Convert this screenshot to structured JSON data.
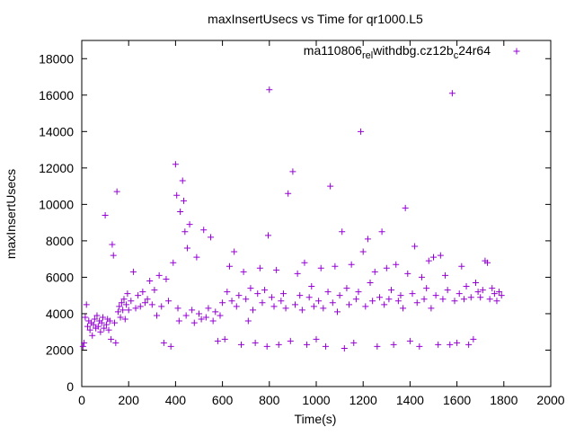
{
  "chart_data": {
    "type": "scatter",
    "title": "maxInsertUsecs vs Time for qr1000.L5",
    "xlabel": "Time(s)",
    "ylabel": "maxInsertUsecs",
    "xlim": [
      0,
      2000
    ],
    "ylim": [
      0,
      19000
    ],
    "x_ticks": [
      0,
      200,
      400,
      600,
      800,
      1000,
      1200,
      1400,
      1600,
      1800,
      2000
    ],
    "y_ticks": [
      0,
      2000,
      4000,
      6000,
      8000,
      10000,
      12000,
      14000,
      16000,
      18000
    ],
    "grid": false,
    "legend_position": "top-right",
    "marker": "+",
    "series": [
      {
        "name": "ma110806_rel_withdbg.cz12b_c24r64",
        "legend_parts": [
          "ma110806",
          "rel",
          "withdbg.cz12b",
          "c",
          "24r64"
        ],
        "color": "#9400d3",
        "points": [
          [
            5,
            2200
          ],
          [
            10,
            2400
          ],
          [
            15,
            3800
          ],
          [
            20,
            4500
          ],
          [
            25,
            3300
          ],
          [
            30,
            3600
          ],
          [
            35,
            3100
          ],
          [
            40,
            3500
          ],
          [
            45,
            2800
          ],
          [
            50,
            3400
          ],
          [
            55,
            3700
          ],
          [
            60,
            3200
          ],
          [
            65,
            3900
          ],
          [
            70,
            3300
          ],
          [
            75,
            3600
          ],
          [
            80,
            3000
          ],
          [
            85,
            3500
          ],
          [
            90,
            3800
          ],
          [
            95,
            3200
          ],
          [
            100,
            9400
          ],
          [
            105,
            3400
          ],
          [
            110,
            3700
          ],
          [
            115,
            3100
          ],
          [
            120,
            3600
          ],
          [
            125,
            2600
          ],
          [
            130,
            7800
          ],
          [
            135,
            7200
          ],
          [
            140,
            3500
          ],
          [
            145,
            2400
          ],
          [
            150,
            10700
          ],
          [
            155,
            4100
          ],
          [
            160,
            4400
          ],
          [
            165,
            3800
          ],
          [
            170,
            4600
          ],
          [
            175,
            4200
          ],
          [
            180,
            4800
          ],
          [
            185,
            3700
          ],
          [
            190,
            4500
          ],
          [
            195,
            5100
          ],
          [
            200,
            4200
          ],
          [
            210,
            4700
          ],
          [
            220,
            6300
          ],
          [
            230,
            4300
          ],
          [
            240,
            5000
          ],
          [
            250,
            4400
          ],
          [
            260,
            5200
          ],
          [
            270,
            4600
          ],
          [
            280,
            4800
          ],
          [
            290,
            5800
          ],
          [
            300,
            4500
          ],
          [
            310,
            5300
          ],
          [
            320,
            3900
          ],
          [
            330,
            6100
          ],
          [
            340,
            4400
          ],
          [
            350,
            2400
          ],
          [
            360,
            5900
          ],
          [
            370,
            4700
          ],
          [
            380,
            2200
          ],
          [
            390,
            6800
          ],
          [
            400,
            12200
          ],
          [
            405,
            10500
          ],
          [
            410,
            4300
          ],
          [
            415,
            3600
          ],
          [
            420,
            9600
          ],
          [
            430,
            11300
          ],
          [
            435,
            10200
          ],
          [
            440,
            8500
          ],
          [
            445,
            3900
          ],
          [
            450,
            7600
          ],
          [
            460,
            8900
          ],
          [
            470,
            4200
          ],
          [
            480,
            3500
          ],
          [
            490,
            7100
          ],
          [
            500,
            4000
          ],
          [
            510,
            3700
          ],
          [
            520,
            8600
          ],
          [
            530,
            3800
          ],
          [
            540,
            4300
          ],
          [
            550,
            8200
          ],
          [
            560,
            3600
          ],
          [
            570,
            4100
          ],
          [
            580,
            2500
          ],
          [
            590,
            3900
          ],
          [
            600,
            4600
          ],
          [
            610,
            2600
          ],
          [
            620,
            5200
          ],
          [
            630,
            6600
          ],
          [
            640,
            4700
          ],
          [
            650,
            7400
          ],
          [
            660,
            4400
          ],
          [
            670,
            5000
          ],
          [
            680,
            2300
          ],
          [
            690,
            6300
          ],
          [
            700,
            4800
          ],
          [
            710,
            3600
          ],
          [
            720,
            5400
          ],
          [
            730,
            4200
          ],
          [
            740,
            2400
          ],
          [
            750,
            5100
          ],
          [
            760,
            6500
          ],
          [
            770,
            4600
          ],
          [
            780,
            5300
          ],
          [
            790,
            2200
          ],
          [
            795,
            8300
          ],
          [
            800,
            16300
          ],
          [
            810,
            4900
          ],
          [
            820,
            4400
          ],
          [
            830,
            6400
          ],
          [
            840,
            2300
          ],
          [
            850,
            4700
          ],
          [
            860,
            5100
          ],
          [
            870,
            4300
          ],
          [
            880,
            10600
          ],
          [
            890,
            2500
          ],
          [
            900,
            11800
          ],
          [
            910,
            4500
          ],
          [
            920,
            6200
          ],
          [
            930,
            5000
          ],
          [
            940,
            4200
          ],
          [
            950,
            6800
          ],
          [
            960,
            2300
          ],
          [
            970,
            4900
          ],
          [
            980,
            5500
          ],
          [
            990,
            4400
          ],
          [
            1000,
            2600
          ],
          [
            1010,
            4700
          ],
          [
            1020,
            6500
          ],
          [
            1030,
            4300
          ],
          [
            1040,
            2200
          ],
          [
            1050,
            5200
          ],
          [
            1060,
            11000
          ],
          [
            1070,
            4600
          ],
          [
            1080,
            6600
          ],
          [
            1090,
            4100
          ],
          [
            1100,
            5000
          ],
          [
            1110,
            8500
          ],
          [
            1120,
            2100
          ],
          [
            1130,
            5400
          ],
          [
            1140,
            4500
          ],
          [
            1150,
            6700
          ],
          [
            1160,
            2400
          ],
          [
            1170,
            4800
          ],
          [
            1180,
            5200
          ],
          [
            1190,
            14000
          ],
          [
            1200,
            7400
          ],
          [
            1210,
            4400
          ],
          [
            1220,
            8100
          ],
          [
            1230,
            5700
          ],
          [
            1240,
            4700
          ],
          [
            1250,
            6300
          ],
          [
            1260,
            2200
          ],
          [
            1270,
            4900
          ],
          [
            1280,
            8500
          ],
          [
            1290,
            4500
          ],
          [
            1300,
            6500
          ],
          [
            1310,
            4800
          ],
          [
            1320,
            5300
          ],
          [
            1330,
            2300
          ],
          [
            1340,
            6700
          ],
          [
            1350,
            4700
          ],
          [
            1360,
            5000
          ],
          [
            1370,
            4300
          ],
          [
            1380,
            9800
          ],
          [
            1390,
            6200
          ],
          [
            1400,
            2500
          ],
          [
            1410,
            5100
          ],
          [
            1420,
            7700
          ],
          [
            1430,
            4600
          ],
          [
            1440,
            2200
          ],
          [
            1450,
            6000
          ],
          [
            1460,
            4800
          ],
          [
            1470,
            5400
          ],
          [
            1480,
            6900
          ],
          [
            1490,
            4300
          ],
          [
            1500,
            7100
          ],
          [
            1510,
            5000
          ],
          [
            1520,
            2300
          ],
          [
            1530,
            7200
          ],
          [
            1540,
            4800
          ],
          [
            1550,
            6100
          ],
          [
            1560,
            5300
          ],
          [
            1570,
            2300
          ],
          [
            1580,
            16100
          ],
          [
            1590,
            4700
          ],
          [
            1600,
            2400
          ],
          [
            1610,
            5100
          ],
          [
            1620,
            6600
          ],
          [
            1630,
            4800
          ],
          [
            1640,
            5500
          ],
          [
            1650,
            2300
          ],
          [
            1660,
            4900
          ],
          [
            1670,
            2600
          ],
          [
            1680,
            5700
          ],
          [
            1690,
            5200
          ],
          [
            1700,
            4900
          ],
          [
            1710,
            5300
          ],
          [
            1720,
            6900
          ],
          [
            1730,
            6800
          ],
          [
            1740,
            4800
          ],
          [
            1750,
            5400
          ],
          [
            1760,
            5100
          ],
          [
            1770,
            4700
          ],
          [
            1780,
            5200
          ],
          [
            1790,
            5000
          ]
        ]
      }
    ]
  }
}
